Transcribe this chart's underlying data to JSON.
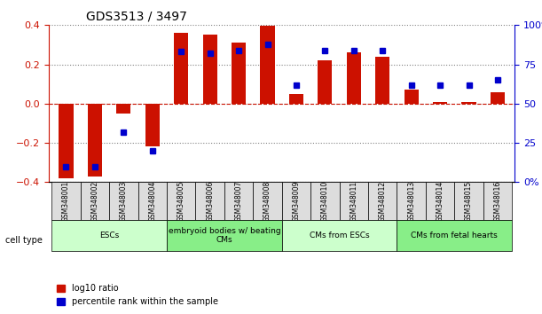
{
  "title": "GDS3513 / 3497",
  "samples": [
    "GSM348001",
    "GSM348002",
    "GSM348003",
    "GSM348004",
    "GSM348005",
    "GSM348006",
    "GSM348007",
    "GSM348008",
    "GSM348009",
    "GSM348010",
    "GSM348011",
    "GSM348012",
    "GSM348013",
    "GSM348014",
    "GSM348015",
    "GSM348016"
  ],
  "log10_ratio": [
    -0.38,
    -0.37,
    -0.05,
    -0.22,
    0.36,
    0.35,
    0.31,
    0.395,
    0.05,
    0.22,
    0.26,
    0.24,
    0.07,
    0.01,
    0.01,
    0.06
  ],
  "percentile_rank": [
    10,
    10,
    32,
    20,
    83,
    82,
    84,
    88,
    62,
    84,
    84,
    84,
    62,
    62,
    62,
    65
  ],
  "cell_type_groups": [
    {
      "label": "ESCs",
      "start": 0,
      "end": 4,
      "color": "#aaffaa"
    },
    {
      "label": "embryoid bodies w/ beating\nCMs",
      "start": 4,
      "end": 8,
      "color": "#88ee88"
    },
    {
      "label": "CMs from ESCs",
      "start": 8,
      "end": 12,
      "color": "#aaffaa"
    },
    {
      "label": "CMs from fetal hearts",
      "start": 12,
      "end": 16,
      "color": "#88ee88"
    }
  ],
  "ylim": [
    -0.4,
    0.4
  ],
  "yticks_left": [
    -0.4,
    -0.2,
    0.0,
    0.2,
    0.4
  ],
  "yticks_right": [
    0,
    25,
    50,
    75,
    100
  ],
  "bar_color_red": "#cc1100",
  "bar_color_blue": "#0000cc",
  "bar_width": 0.5,
  "legend_red_label": "log10 ratio",
  "legend_blue_label": "percentile rank within the sample",
  "cell_type_label": "cell type"
}
